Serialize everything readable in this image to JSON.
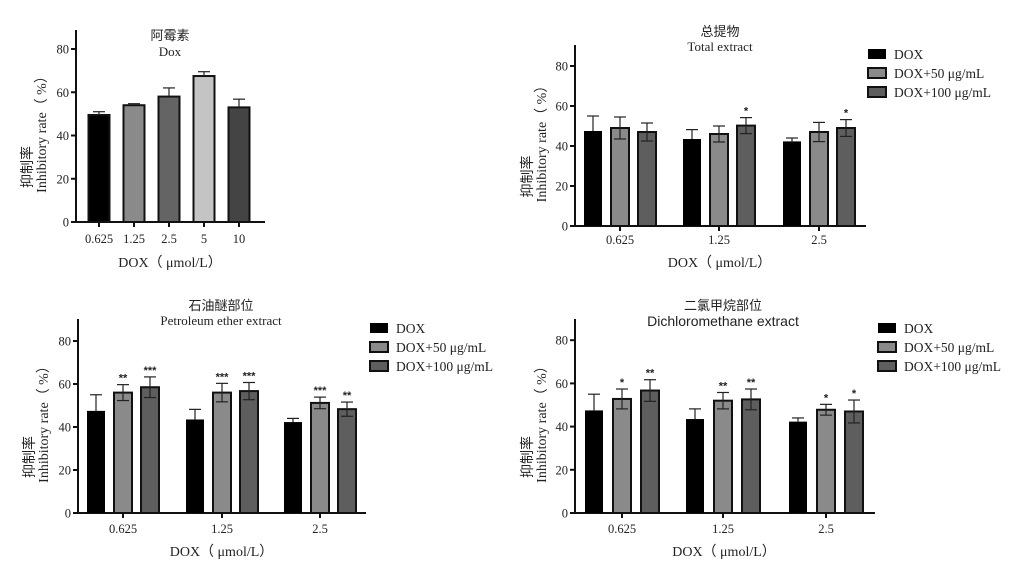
{
  "colors": {
    "axis": "#111111",
    "dox": "#000000",
    "dox50": "#8a8a8a",
    "dox100": "#5e5e5e",
    "c_0625": "#000000",
    "c_125": "#8a8a8a",
    "c_25": "#646464",
    "c_5": "#c4c4c4",
    "c_10": "#444444"
  },
  "chart_data": [
    {
      "id": "dox",
      "type": "bar",
      "title_cn": "阿霉素",
      "title": "Dox",
      "ylabel_cn": "抑制率",
      "ylabel": "Inhibitory rate（ %）",
      "xlabel": "DOX（ μmol/L）",
      "ylim": [
        0,
        90
      ],
      "yticks": [
        "0",
        "20",
        "40",
        "60",
        "80"
      ],
      "categories": [
        "0.625",
        "1.25",
        "2.5",
        "5",
        "10"
      ],
      "values": [
        49.5,
        54,
        58,
        67.5,
        53
      ],
      "errors": [
        1.5,
        0.7,
        4,
        2,
        3.8
      ],
      "grid": false,
      "legend": null
    },
    {
      "id": "total",
      "type": "bar",
      "title_cn": "总提物",
      "title": "Total extract",
      "ylabel_cn": "抑制率",
      "ylabel": "Inhibitory rate（ %）",
      "xlabel": "DOX（ μmol/L）",
      "ylim": [
        0,
        90
      ],
      "yticks": [
        "0",
        "20",
        "40",
        "60",
        "80"
      ],
      "categories": [
        "0.625",
        "1.25",
        "2.5"
      ],
      "series": [
        {
          "name": "DOX",
          "values": [
            47.5,
            43.5,
            42.3
          ],
          "errors": [
            7.5,
            4.7,
            1.7
          ],
          "sig": [
            "",
            "",
            ""
          ]
        },
        {
          "name": "DOX+50 μg/mL",
          "values": [
            49,
            46,
            47
          ],
          "errors": [
            5.5,
            4,
            4.8
          ],
          "sig": [
            "",
            "",
            ""
          ]
        },
        {
          "name": "DOX+100 μg/mL",
          "values": [
            47,
            50.2,
            49
          ],
          "errors": [
            4.5,
            4,
            4.2
          ],
          "sig": [
            "",
            "*",
            "*"
          ]
        }
      ],
      "grid": false,
      "legend": "right"
    },
    {
      "id": "petroleum",
      "type": "bar",
      "title_cn": "石油醚部位",
      "title": "Petroleum ether extract",
      "ylabel_cn": "抑制率",
      "ylabel": "Inhibitory rate（ %）",
      "xlabel": "DOX（ μmol/L）",
      "ylim": [
        0,
        90
      ],
      "yticks": [
        "0",
        "20",
        "40",
        "60",
        "80"
      ],
      "categories": [
        "0.625",
        "1.25",
        "2.5"
      ],
      "series": [
        {
          "name": "DOX",
          "values": [
            47.5,
            43.5,
            42.3
          ],
          "errors": [
            7.5,
            4.7,
            1.7
          ],
          "sig": [
            "",
            "",
            ""
          ]
        },
        {
          "name": "DOX+50 μg/mL",
          "values": [
            56,
            56,
            51.2
          ],
          "errors": [
            3.7,
            4.3,
            2.7
          ],
          "sig": [
            "**",
            "***",
            "***"
          ]
        },
        {
          "name": "DOX+100 μg/mL",
          "values": [
            58.5,
            56.7,
            48.3
          ],
          "errors": [
            4.8,
            4,
            3.3
          ],
          "sig": [
            "***",
            "***",
            "**"
          ]
        }
      ],
      "grid": false,
      "legend": "right"
    },
    {
      "id": "dichloromethane",
      "type": "bar",
      "title_cn": "二氯甲烷部位",
      "title": "Dichloromethane extract",
      "ylabel_cn": "抑制率",
      "ylabel": "Inhibitory rate（ %）",
      "xlabel": "DOX（ μmol/L）",
      "ylim": [
        0,
        90
      ],
      "yticks": [
        "0",
        "20",
        "40",
        "60",
        "80"
      ],
      "categories": [
        "0.625",
        "1.25",
        "2.5"
      ],
      "series": [
        {
          "name": "DOX",
          "values": [
            47.5,
            43.5,
            42.3
          ],
          "errors": [
            7.5,
            4.7,
            1.7
          ],
          "sig": [
            "",
            "",
            ""
          ]
        },
        {
          "name": "DOX+50 μg/mL",
          "values": [
            52.8,
            52,
            47.8
          ],
          "errors": [
            4.6,
            3.8,
            2.5
          ],
          "sig": [
            "*",
            "**",
            "*"
          ]
        },
        {
          "name": "DOX+100 μg/mL",
          "values": [
            56.7,
            52.6,
            47
          ],
          "errors": [
            5,
            4.8,
            5.3
          ],
          "sig": [
            "**",
            "**",
            "*"
          ]
        }
      ],
      "grid": false,
      "legend": "right"
    }
  ]
}
